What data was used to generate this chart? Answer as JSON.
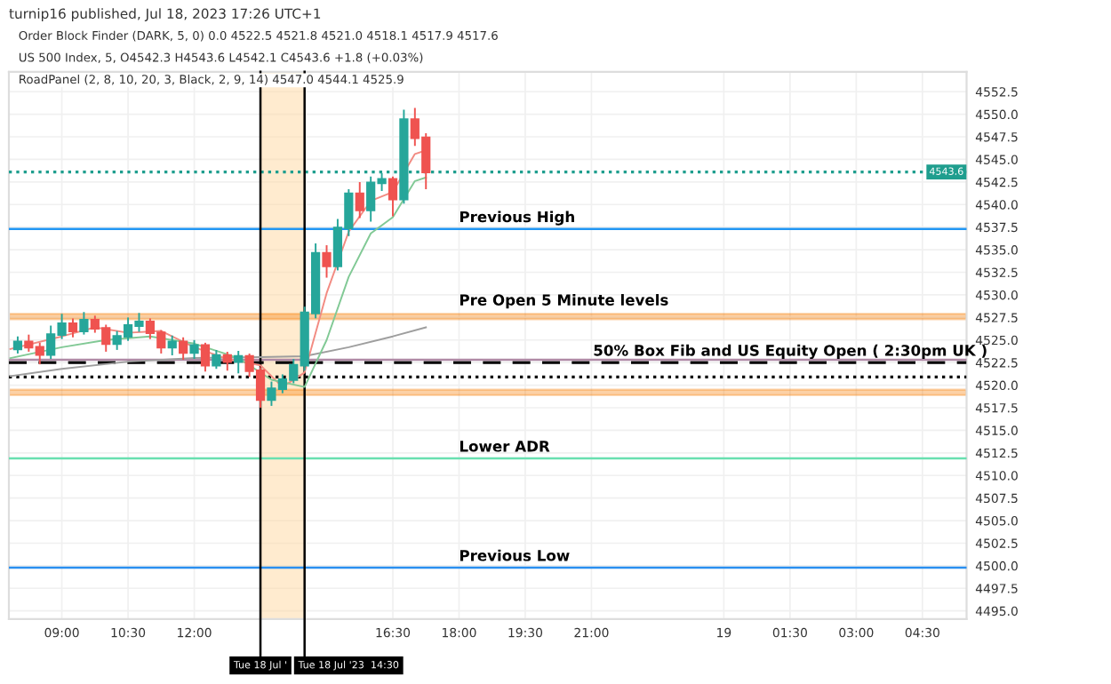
{
  "chart_data": {
    "type": "candlestick",
    "title": "turnip16 published, Jul 18, 2023 17:26 UTC+1",
    "subtitle": "US 500 Index, 5, O4542.3 H4543.6 L4542.1 C4543.6 +1.8 (+0.03%)",
    "annotations": [
      "Order Block Finder (DARK, 5, 0) 0.0 4522.5 4521.8 4521.0 4518.1 4517.9 4517.6",
      "RoadPanel (2, 8, 10, 20, 3, Black, 2, 9, 14) 4547.0 4544.1 4525.9",
      "50% Box Fib and US Equity Open ( 2:30pm UK )"
    ],
    "x": [
      "2023-07-18T08:00",
      "2023-07-18T08:15",
      "2023-07-18T08:30",
      "2023-07-18T08:45",
      "2023-07-18T09:00",
      "2023-07-18T09:15",
      "2023-07-18T09:30",
      "2023-07-18T09:45",
      "2023-07-18T10:00",
      "2023-07-18T10:15",
      "2023-07-18T10:30",
      "2023-07-18T10:45",
      "2023-07-18T11:00",
      "2023-07-18T11:15",
      "2023-07-18T11:30",
      "2023-07-18T11:45",
      "2023-07-18T12:00",
      "2023-07-18T12:15",
      "2023-07-18T12:30",
      "2023-07-18T12:45",
      "2023-07-18T13:00",
      "2023-07-18T13:15",
      "2023-07-18T13:30",
      "2023-07-18T13:45",
      "2023-07-18T14:00",
      "2023-07-18T14:15",
      "2023-07-18T14:30",
      "2023-07-18T14:45",
      "2023-07-18T15:00",
      "2023-07-18T15:15",
      "2023-07-18T15:30",
      "2023-07-18T15:45",
      "2023-07-18T16:00",
      "2023-07-18T16:15",
      "2023-07-18T16:30",
      "2023-07-18T16:45",
      "2023-07-18T17:00",
      "2023-07-18T17:15"
    ],
    "ohlc": [
      [
        4524.0,
        4525.3,
        4523.6,
        4524.8
      ],
      [
        4524.8,
        4525.5,
        4523.8,
        4524.2
      ],
      [
        4524.2,
        4524.6,
        4522.4,
        4523.4
      ],
      [
        4523.4,
        4526.5,
        4523.0,
        4525.6
      ],
      [
        4525.6,
        4527.8,
        4525.2,
        4526.8
      ],
      [
        4526.8,
        4527.3,
        4525.4,
        4526.0
      ],
      [
        4526.0,
        4528.0,
        4525.7,
        4527.2
      ],
      [
        4527.2,
        4527.6,
        4525.9,
        4526.3
      ],
      [
        4526.3,
        4526.6,
        4523.8,
        4524.6
      ],
      [
        4524.6,
        4525.9,
        4524.0,
        4525.4
      ],
      [
        4525.4,
        4527.4,
        4525.0,
        4526.6
      ],
      [
        4526.6,
        4527.9,
        4526.0,
        4527.0
      ],
      [
        4527.0,
        4527.3,
        4525.2,
        4525.8
      ],
      [
        4525.8,
        4526.0,
        4523.6,
        4524.2
      ],
      [
        4524.2,
        4525.4,
        4523.4,
        4524.8
      ],
      [
        4524.8,
        4525.2,
        4522.9,
        4523.6
      ],
      [
        4523.6,
        4524.9,
        4523.0,
        4524.4
      ],
      [
        4524.4,
        4524.6,
        4521.6,
        4522.2
      ],
      [
        4522.2,
        4523.8,
        4521.9,
        4523.3
      ],
      [
        4523.3,
        4523.6,
        4521.7,
        4522.6
      ],
      [
        4522.6,
        4523.7,
        4521.4,
        4523.2
      ],
      [
        4523.2,
        4523.4,
        4521.0,
        4521.6
      ],
      [
        4521.6,
        4521.9,
        4517.6,
        4518.4
      ],
      [
        4518.4,
        4520.3,
        4517.8,
        4519.6
      ],
      [
        4519.6,
        4521.1,
        4519.2,
        4520.6
      ],
      [
        4520.6,
        4522.8,
        4520.3,
        4522.2
      ],
      [
        4522.2,
        4528.6,
        4521.7,
        4528.0
      ],
      [
        4528.0,
        4535.6,
        4527.5,
        4534.6
      ],
      [
        4534.6,
        4535.4,
        4532.0,
        4533.2
      ],
      [
        4533.2,
        4538.3,
        4532.8,
        4537.4
      ],
      [
        4537.4,
        4541.6,
        4536.6,
        4541.2
      ],
      [
        4541.2,
        4542.4,
        4538.6,
        4539.4
      ],
      [
        4539.4,
        4543.0,
        4538.2,
        4542.4
      ],
      [
        4542.4,
        4543.4,
        4541.6,
        4542.8
      ],
      [
        4542.8,
        4543.0,
        4538.8,
        4540.6
      ],
      [
        4540.6,
        4550.4,
        4540.2,
        4549.4
      ],
      [
        4549.4,
        4550.6,
        4546.6,
        4547.4
      ],
      [
        4547.4,
        4547.8,
        4541.8,
        4543.6
      ]
    ],
    "colors": [
      "#26a69a",
      "#ef5350",
      "#ef5350",
      "#26a69a",
      "#26a69a",
      "#ef5350",
      "#26a69a",
      "#ef5350",
      "#ef5350",
      "#26a69a",
      "#26a69a",
      "#26a69a",
      "#ef5350",
      "#ef5350",
      "#26a69a",
      "#ef5350",
      "#26a69a",
      "#ef5350",
      "#26a69a",
      "#ef5350",
      "#26a69a",
      "#ef5350",
      "#ef5350",
      "#26a69a",
      "#26a69a",
      "#26a69a",
      "#26a69a",
      "#26a69a",
      "#ef5350",
      "#26a69a",
      "#26a69a",
      "#ef5350",
      "#26a69a",
      "#26a69a",
      "#ef5350",
      "#26a69a",
      "#ef5350",
      "#ef5350"
    ],
    "series": [
      {
        "type": "line",
        "color": "#9e9e9e",
        "x": [
          "2023-07-18T07:50",
          "2023-07-18T09:00",
          "2023-07-18T10:30",
          "2023-07-18T12:00",
          "2023-07-18T13:30",
          "2023-07-18T14:30",
          "2023-07-18T15:30",
          "2023-07-18T16:30",
          "2023-07-18T17:15"
        ],
        "values": [
          4521.0,
          4521.8,
          4522.6,
          4523.0,
          4523.1,
          4523.2,
          4524.2,
          4525.4,
          4526.4
        ]
      },
      {
        "type": "line",
        "color": "#f28b82",
        "x": [
          "2023-07-18T07:50",
          "2023-07-18T09:00",
          "2023-07-18T09:45",
          "2023-07-18T10:30",
          "2023-07-18T11:15",
          "2023-07-18T12:00",
          "2023-07-18T12:45",
          "2023-07-18T13:30",
          "2023-07-18T14:00",
          "2023-07-18T14:30",
          "2023-07-18T15:00",
          "2023-07-18T15:30",
          "2023-07-18T16:00",
          "2023-07-18T16:30",
          "2023-07-18T17:00",
          "2023-07-18T17:15"
        ],
        "values": [
          4524.0,
          4525.4,
          4526.4,
          4525.8,
          4526.0,
          4524.2,
          4522.9,
          4522.2,
          4519.8,
          4521.4,
          4530.2,
          4537.0,
          4540.4,
          4541.4,
          4545.6,
          4546.0
        ]
      },
      {
        "type": "line",
        "color": "#81c995",
        "x": [
          "2023-07-18T07:50",
          "2023-07-18T09:00",
          "2023-07-18T10:00",
          "2023-07-18T11:00",
          "2023-07-18T12:00",
          "2023-07-18T13:00",
          "2023-07-18T13:45",
          "2023-07-18T14:30",
          "2023-07-18T15:00",
          "2023-07-18T15:30",
          "2023-07-18T16:00",
          "2023-07-18T16:30",
          "2023-07-18T17:00",
          "2023-07-18T17:15"
        ],
        "values": [
          4523.0,
          4524.2,
          4525.0,
          4525.4,
          4524.6,
          4523.0,
          4520.6,
          4519.8,
          4525.0,
          4532.0,
          4536.8,
          4538.6,
          4542.6,
          4543.0
        ]
      }
    ],
    "ylim": [
      4494.1,
      4554.7
    ],
    "yticks": [
      {
        "value": 4495,
        "label": "4495.0"
      },
      {
        "value": 4497.5,
        "label": "4497.5"
      },
      {
        "value": 4500,
        "label": "4500.0"
      },
      {
        "value": 4502.5,
        "label": "4502.5"
      },
      {
        "value": 4505,
        "label": "4505.0"
      },
      {
        "value": 4507.5,
        "label": "4507.5"
      },
      {
        "value": 4510,
        "label": "4510.0"
      },
      {
        "value": 4512.5,
        "label": "4512.5"
      },
      {
        "value": 4515,
        "label": "4515.0"
      },
      {
        "value": 4517.5,
        "label": "4517.5"
      },
      {
        "value": 4520,
        "label": "4520.0"
      },
      {
        "value": 4522.5,
        "label": "4522.5"
      },
      {
        "value": 4525,
        "label": "4525.0"
      },
      {
        "value": 4527.5,
        "label": "4527.5"
      },
      {
        "value": 4530,
        "label": "4530.0"
      },
      {
        "value": 4532.5,
        "label": "4532.5"
      },
      {
        "value": 4535,
        "label": "4535.0"
      },
      {
        "value": 4537.5,
        "label": "4537.5"
      },
      {
        "value": 4540,
        "label": "4540.0"
      },
      {
        "value": 4542.5,
        "label": "4542.5"
      },
      {
        "value": 4545,
        "label": "4545.0"
      },
      {
        "value": 4547.5,
        "label": "4547.5"
      },
      {
        "value": 4550,
        "label": "4550.0"
      },
      {
        "value": 4552.5,
        "label": "4552.5"
      }
    ],
    "xlim": [
      "2023-07-18T07:48",
      "2023-07-19T05:30"
    ],
    "xticks": [
      {
        "value": "2023-07-18T09:00",
        "label": "09:00"
      },
      {
        "value": "2023-07-18T10:30",
        "label": "10:30"
      },
      {
        "value": "2023-07-18T12:00",
        "label": "12:00"
      },
      {
        "value": "2023-07-18T16:30",
        "label": "16:30"
      },
      {
        "value": "2023-07-18T18:00",
        "label": "18:00"
      },
      {
        "value": "2023-07-18T19:30",
        "label": "19:30"
      },
      {
        "value": "2023-07-18T21:00",
        "label": "21:00"
      },
      {
        "value": "2023-07-19T00:00",
        "label": "19"
      },
      {
        "value": "2023-07-19T01:30",
        "label": "01:30"
      },
      {
        "value": "2023-07-19T03:00",
        "label": "03:00"
      },
      {
        "value": "2023-07-19T04:30",
        "label": "04:30"
      }
    ],
    "ref_lines": [
      {
        "axis": "y",
        "value": 4537.3,
        "label": "Previous High",
        "color": "#2196f3",
        "line_style": "solid"
      },
      {
        "axis": "y",
        "value": 4522.5,
        "label": null,
        "color": "#000000",
        "line_style": "dashed"
      },
      {
        "axis": "y",
        "value": 4522.8,
        "label": null,
        "color": "#b08aa6",
        "line_style": "solid"
      },
      {
        "axis": "y",
        "value": 4520.9,
        "label": null,
        "color": "#000000",
        "line_style": "dotted"
      },
      {
        "axis": "y",
        "value": 4511.9,
        "label": "Lower ADR",
        "color": "#69e0b0",
        "line_style": "solid"
      },
      {
        "axis": "y",
        "value": 4499.8,
        "label": "Previous Low",
        "color": "#2a8ff0",
        "line_style": "solid"
      },
      {
        "axis": "y",
        "value": 4543.6,
        "label": "4543.6",
        "color": "#1f9e8e",
        "line_style": "dotted"
      },
      {
        "axis": "x",
        "value": "2023-07-18T13:30",
        "label": "Tue 18 Jul '",
        "color": "#000000",
        "line_style": "solid"
      },
      {
        "axis": "x",
        "value": "2023-07-18T14:30",
        "label": "Tue 18 Jul '23  14:30",
        "color": "#000000",
        "line_style": "solid"
      }
    ],
    "bands": [
      {
        "axis": "y",
        "from": 4527.3,
        "to": 4527.9,
        "label": "Pre Open 5 Minute levels",
        "color": "#f57c00"
      },
      {
        "axis": "y",
        "from": 4518.9,
        "to": 4519.5,
        "label": null,
        "color": "#f57c00"
      },
      {
        "axis": "x",
        "from": "2023-07-18T13:30",
        "to": "2023-07-18T14:30",
        "label": null,
        "color": "#ffd8a0"
      }
    ],
    "grid": true,
    "marker": "none",
    "line_style": "solid"
  }
}
